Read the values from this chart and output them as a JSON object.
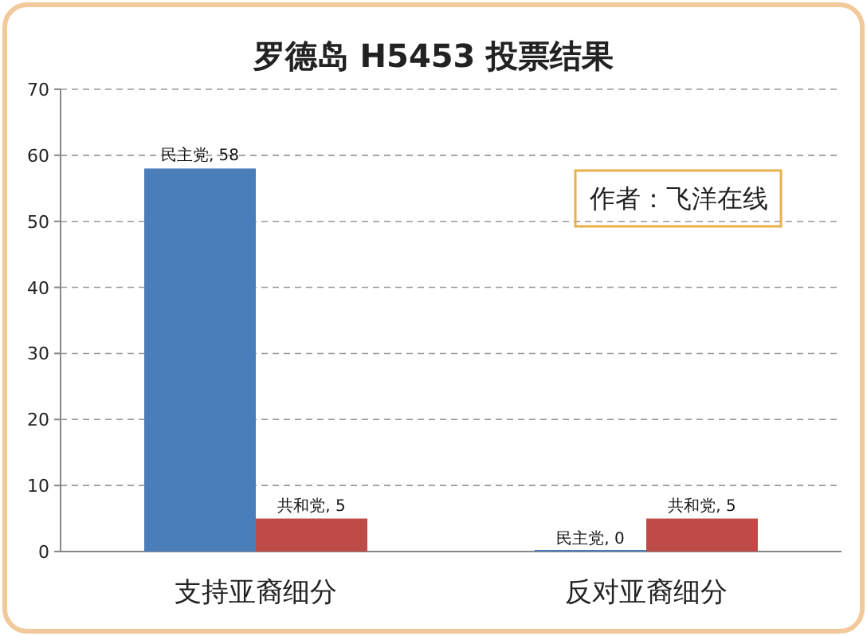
{
  "chart_data": {
    "type": "bar",
    "title": "罗德岛 H5453 投票结果",
    "categories": [
      "支持亚裔细分",
      "反对亚裔细分"
    ],
    "series": [
      {
        "color": "#4a7ebb",
        "values": [
          58,
          0
        ],
        "value_labels": [
          "民主党, 58",
          "民主党, 0"
        ]
      },
      {
        "color": "#be4b48",
        "values": [
          5,
          5
        ],
        "value_labels": [
          "共和党, 5",
          "共和党, 5"
        ]
      }
    ],
    "ylim": [
      0,
      70
    ],
    "yticks": [
      0,
      10,
      20,
      30,
      40,
      50,
      60,
      70
    ],
    "grid": "y",
    "legend": false,
    "annotations": [
      "作者：飞洋在线"
    ]
  }
}
